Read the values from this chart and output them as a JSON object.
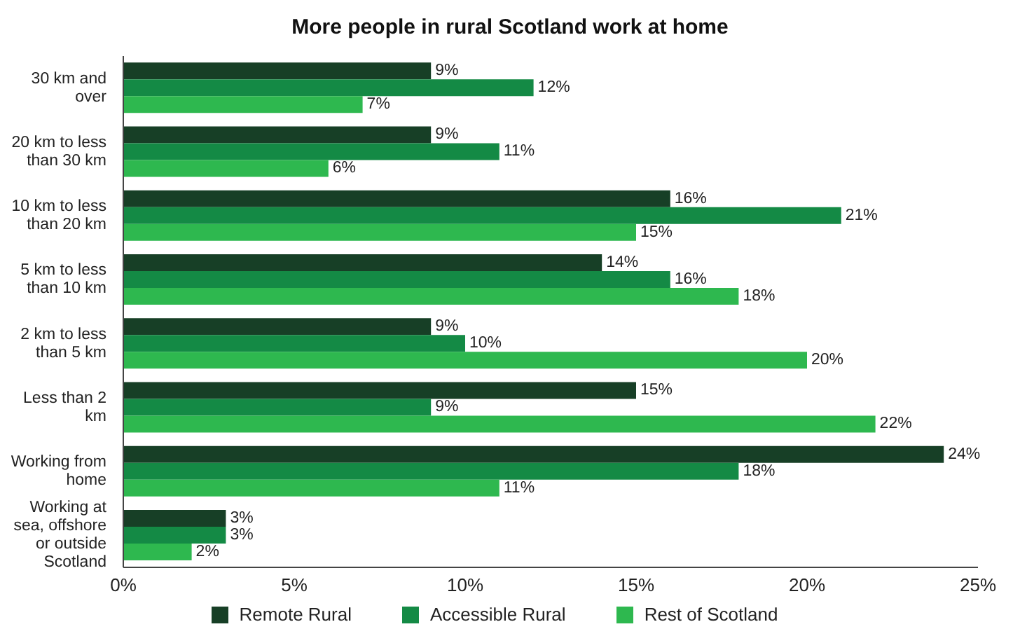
{
  "chart_data": {
    "type": "bar",
    "orientation": "horizontal",
    "title": "More people in rural Scotland work at home",
    "categories": [
      "30 km and over",
      "20 km to less than 30 km",
      "10 km to less than 20 km",
      "5 km to less than 10 km",
      "2 km to less than 5 km",
      "Less than 2 km",
      "Working from home",
      "Working at sea, offshore or outside Scotland"
    ],
    "series": [
      {
        "name": "Remote Rural",
        "color": "#173f26",
        "values": [
          9,
          9,
          16,
          14,
          9,
          15,
          24,
          3
        ],
        "value_labels": [
          "9%",
          "9%",
          "16%",
          "14%",
          "9%",
          "15%",
          "24%",
          "3%"
        ]
      },
      {
        "name": "Accessible Rural",
        "color": "#148a45",
        "values": [
          12,
          11,
          21,
          16,
          10,
          9,
          18,
          3
        ],
        "value_labels": [
          "12%",
          "11%",
          "21%",
          "16%",
          "10%",
          "9%",
          "18%",
          "3%"
        ]
      },
      {
        "name": "Rest of Scotland",
        "color": "#2eb84f",
        "values": [
          7,
          6,
          15,
          18,
          20,
          22,
          11,
          2
        ],
        "value_labels": [
          "7%",
          "6%",
          "15%",
          "18%",
          "20%",
          "22%",
          "11%",
          "2%"
        ]
      }
    ],
    "xlim": [
      0,
      25
    ],
    "xticks": [
      {
        "value": 0,
        "label": "0%"
      },
      {
        "value": 5,
        "label": "5%"
      },
      {
        "value": 10,
        "label": "10%"
      },
      {
        "value": 15,
        "label": "15%"
      },
      {
        "value": 20,
        "label": "20%"
      },
      {
        "value": 25,
        "label": "25%"
      }
    ],
    "legend": "bottom",
    "grid": false
  }
}
